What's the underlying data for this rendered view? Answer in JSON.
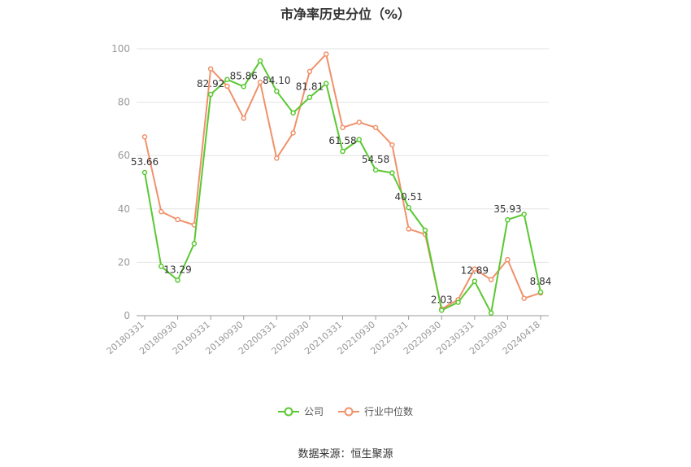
{
  "title": "市净率历史分位（%）",
  "source": "数据来源：恒生聚源",
  "chart_data": {
    "type": "line",
    "title": "市净率历史分位（%）",
    "ylim": [
      0,
      100
    ],
    "yticks": [
      0,
      20,
      40,
      60,
      80,
      100
    ],
    "grid": true,
    "legend_position": "bottom",
    "x": [
      "20180331",
      "20180630",
      "20180930",
      "20181231",
      "20190331",
      "20190630",
      "20190930",
      "20191231",
      "20200331",
      "20200630",
      "20200930",
      "20201231",
      "20210331",
      "20210630",
      "20210930",
      "20211231",
      "20220331",
      "20220630",
      "20220930",
      "20221231",
      "20230331",
      "20230630",
      "20230930",
      "20231231",
      "20240418"
    ],
    "xtick_labels": [
      "20180331",
      "20180930",
      "20190331",
      "20190930",
      "20200331",
      "20200930",
      "20210331",
      "20210930",
      "20220331",
      "20220930",
      "20230331",
      "20230930",
      "20240418"
    ],
    "series": [
      {
        "name": "公司",
        "color": "#5ac832",
        "values": [
          53.66,
          18.5,
          13.29,
          27.0,
          82.92,
          88.5,
          85.86,
          95.5,
          84.1,
          76.0,
          81.81,
          87.0,
          61.58,
          66.0,
          54.58,
          53.5,
          40.51,
          32.0,
          2.03,
          5.0,
          12.89,
          1.0,
          35.93,
          38.0,
          8.84
        ],
        "labels": [
          "53.66",
          "",
          "13.29",
          "",
          "82.92",
          "",
          "85.86",
          "",
          "84.10",
          "",
          "81.81",
          "",
          "61.58",
          "",
          "54.58",
          "",
          "40.51",
          "",
          "2.03",
          "",
          "12.89",
          "",
          "35.93",
          "",
          "8.84"
        ]
      },
      {
        "name": "行业中位数",
        "color": "#f0916a",
        "values": [
          67.0,
          39.0,
          36.0,
          34.0,
          92.5,
          86.0,
          74.0,
          87.5,
          59.0,
          68.5,
          91.5,
          98.0,
          70.5,
          72.5,
          70.5,
          64.0,
          32.5,
          30.5,
          2.5,
          6.0,
          17.5,
          13.5,
          21.0,
          6.5,
          8.5
        ],
        "labels": []
      }
    ]
  }
}
